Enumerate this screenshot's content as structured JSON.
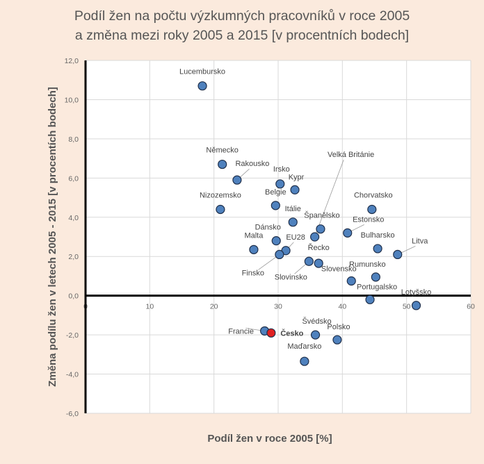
{
  "chart_data": {
    "type": "scatter",
    "title_line1": "Podíl žen na počtu výzkumných pracovníků v roce 2005",
    "title_line2": "a změna mezi roky 2005 a 2015 [v procentních bodech]",
    "xlabel": "Podíl žen v roce 2005 [%]",
    "ylabel": "Změna podílu žen v letech 2005 - 2015 [v procentích bodech]",
    "xlim": [
      0,
      60
    ],
    "ylim": [
      -6,
      12
    ],
    "xticks": [
      "0",
      "10",
      "20",
      "30",
      "40",
      "50",
      "60"
    ],
    "yticks": [
      "-6,0",
      "-4,0",
      "-2,0",
      "0,0",
      "2,0",
      "4,0",
      "6,0",
      "8,0",
      "10,0",
      "12,0"
    ],
    "grid": true,
    "colors": {
      "default": "#4f81bd",
      "highlight": "#e02020"
    },
    "points": [
      {
        "label": "Lucembursko",
        "x": 18.2,
        "y": 10.7
      },
      {
        "label": "Německo",
        "x": 21.3,
        "y": 6.7
      },
      {
        "label": "Rakousko",
        "x": 23.6,
        "y": 5.9
      },
      {
        "label": "Irsko",
        "x": 30.3,
        "y": 5.7
      },
      {
        "label": "Kypr",
        "x": 32.6,
        "y": 5.4
      },
      {
        "label": "Belgie",
        "x": 29.6,
        "y": 4.6
      },
      {
        "label": "Nizozemsko",
        "x": 21.0,
        "y": 4.4
      },
      {
        "label": "Chorvatsko",
        "x": 44.6,
        "y": 4.4
      },
      {
        "label": "Itálie",
        "x": 32.3,
        "y": 3.75
      },
      {
        "label": "Španělsko",
        "x": 36.6,
        "y": 3.4
      },
      {
        "label": "Velká Británie",
        "x": 35.7,
        "y": 3.0
      },
      {
        "label": "Estonsko",
        "x": 40.8,
        "y": 3.2
      },
      {
        "label": "Dánsko",
        "x": 29.7,
        "y": 2.8
      },
      {
        "label": "Malta",
        "x": 26.2,
        "y": 2.35
      },
      {
        "label": "EU28",
        "x": 31.2,
        "y": 2.3
      },
      {
        "label": "Finsko",
        "x": 30.2,
        "y": 2.1
      },
      {
        "label": "Bulharsko",
        "x": 45.5,
        "y": 2.4
      },
      {
        "label": "Litva",
        "x": 48.6,
        "y": 2.1
      },
      {
        "label": "Slovinsko",
        "x": 34.8,
        "y": 1.75
      },
      {
        "label": "Řecko",
        "x": 36.3,
        "y": 1.65
      },
      {
        "label": "Rumunsko",
        "x": 45.2,
        "y": 0.95
      },
      {
        "label": "Slovensko",
        "x": 41.4,
        "y": 0.75
      },
      {
        "label": "Portugalsko",
        "x": 44.3,
        "y": -0.2
      },
      {
        "label": "Lotyšsko",
        "x": 51.5,
        "y": -0.5
      },
      {
        "label": "Francie",
        "x": 27.9,
        "y": -1.8
      },
      {
        "label": "Česko",
        "x": 28.9,
        "y": -1.9,
        "highlight": true
      },
      {
        "label": "Švédsko",
        "x": 35.8,
        "y": -2.0
      },
      {
        "label": "Polsko",
        "x": 39.2,
        "y": -2.25
      },
      {
        "label": "Maďarsko",
        "x": 34.1,
        "y": -3.35
      }
    ]
  }
}
